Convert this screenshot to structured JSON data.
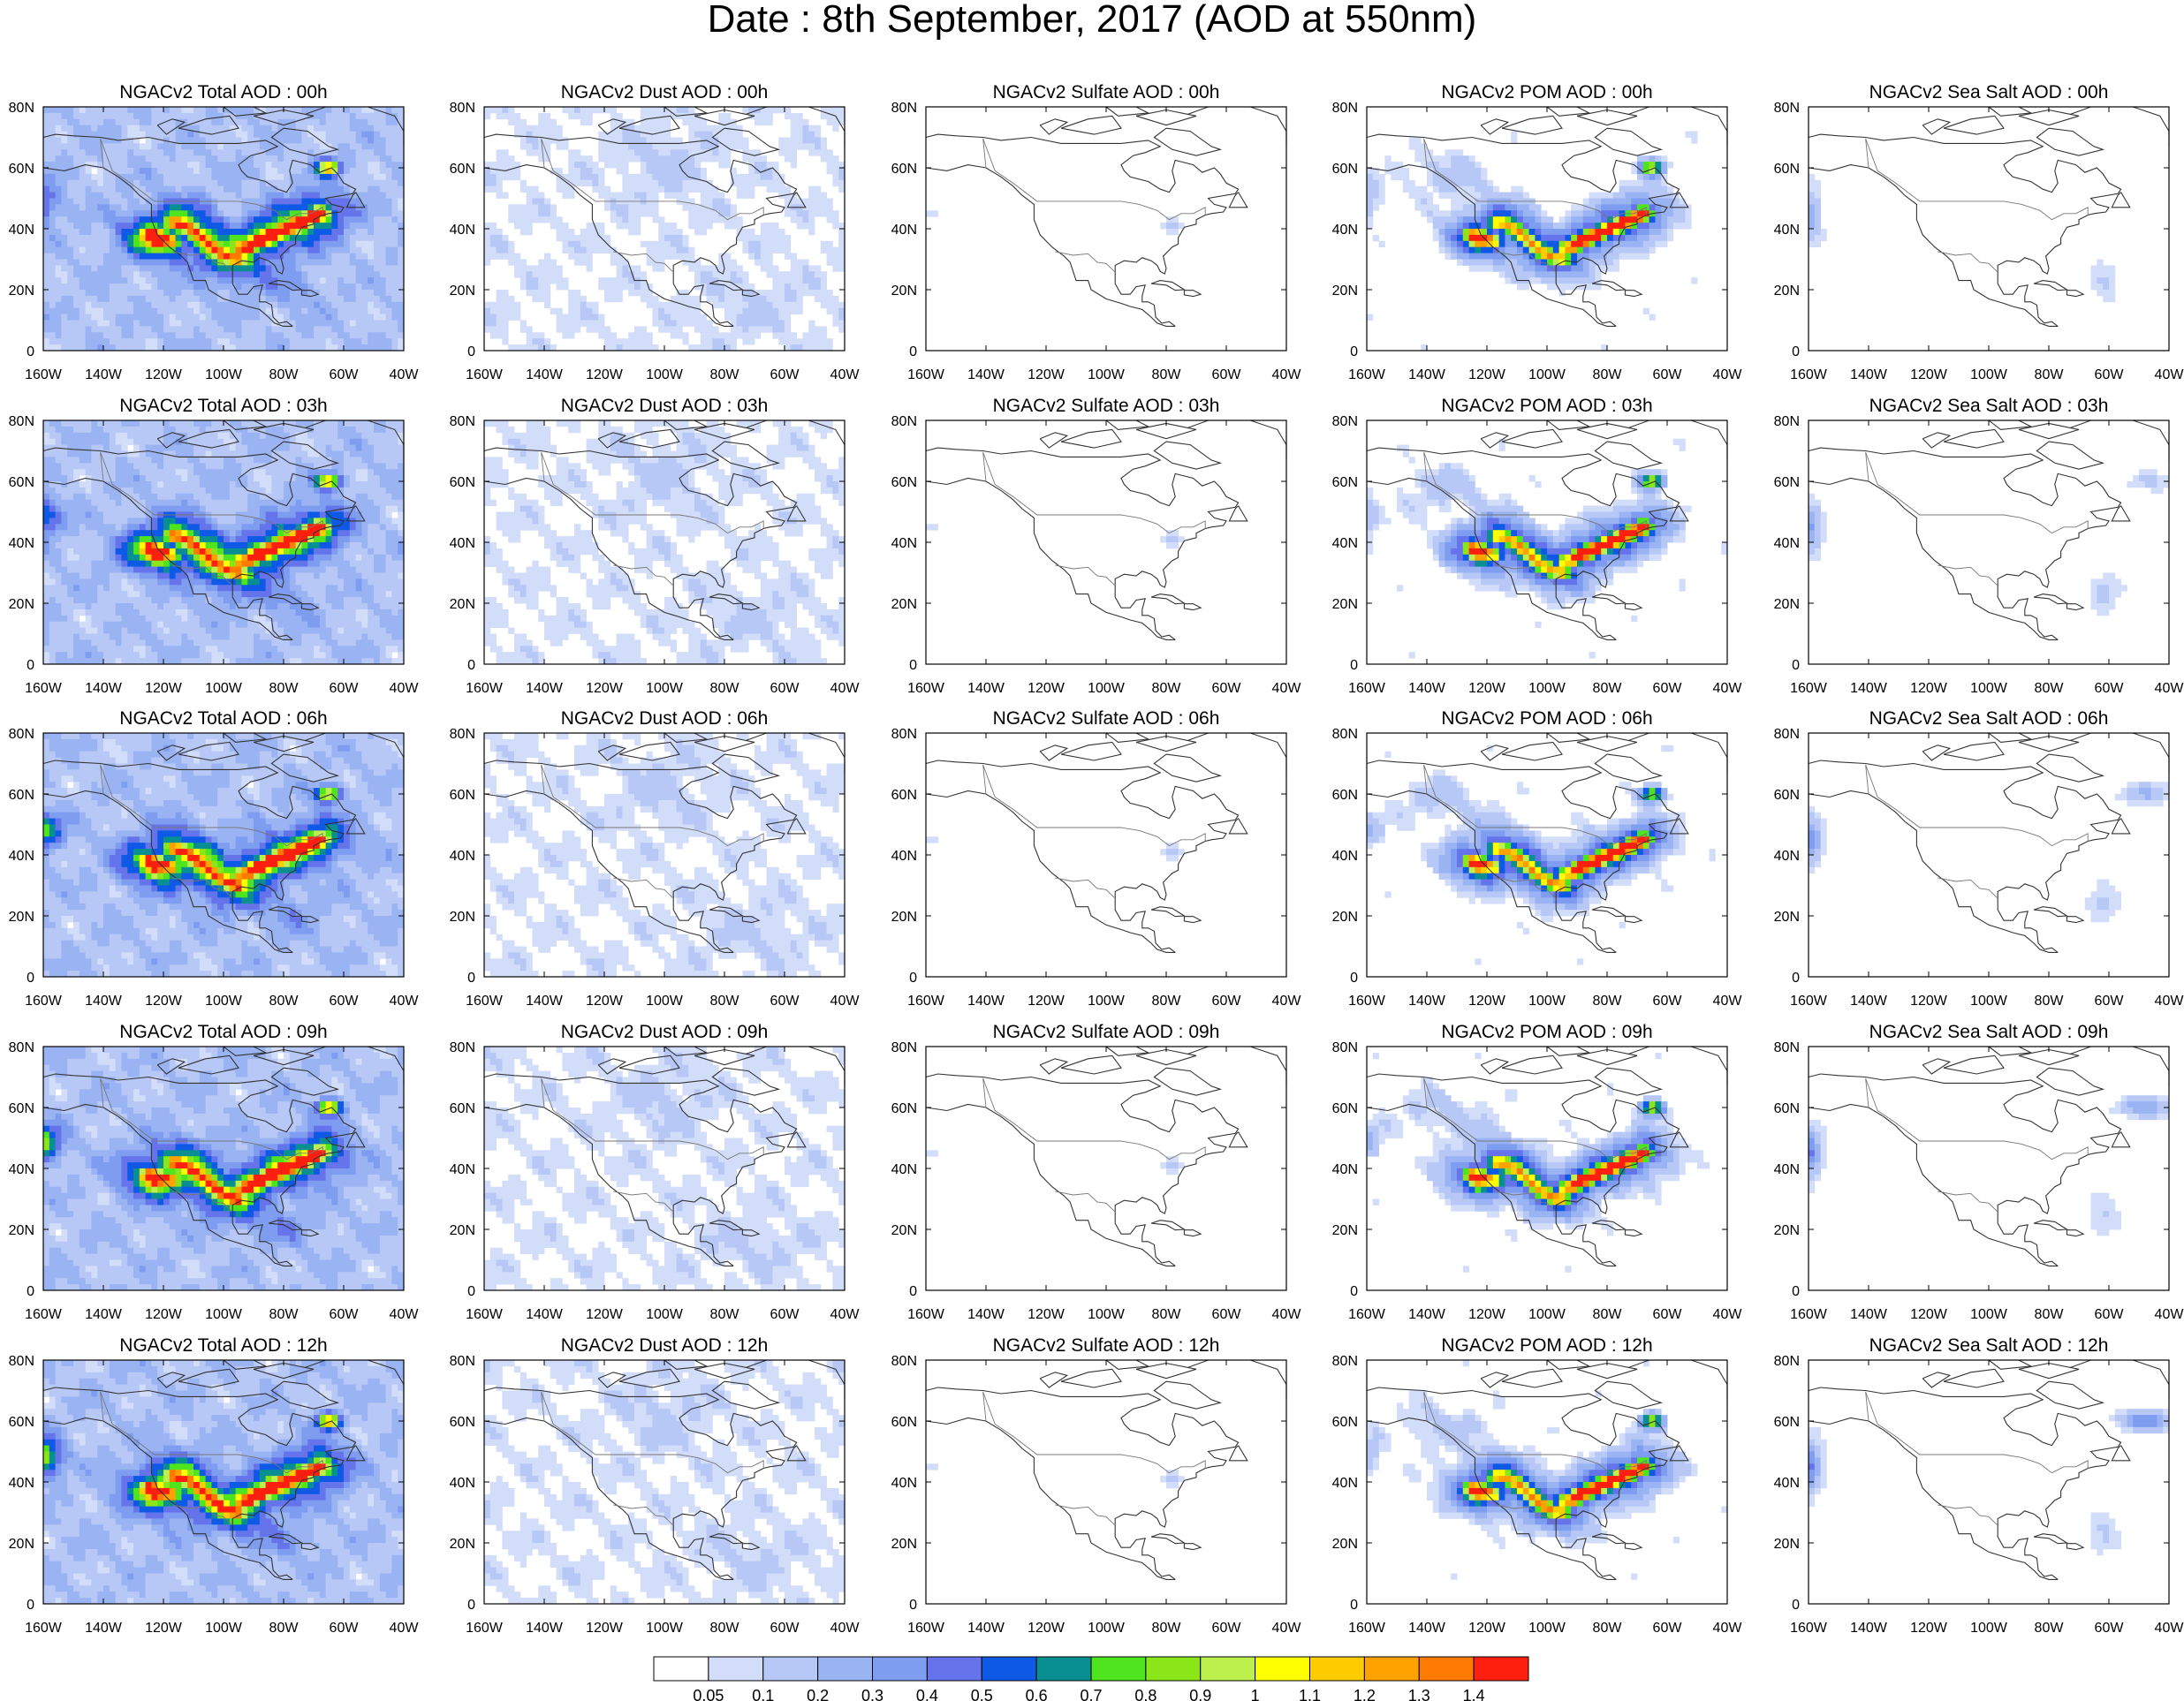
{
  "title": "Date : 8th September, 2017 (AOD at 550nm)",
  "colorbar": {
    "colors": [
      "#ffffff",
      "#d2ddfa",
      "#b7c8f6",
      "#9ab3f3",
      "#7e9cf0",
      "#6574ea",
      "#0e59e6",
      "#098e91",
      "#4ee51f",
      "#8ae619",
      "#bdf04c",
      "#ffff00",
      "#ffcc00",
      "#ffa200",
      "#ff7a00",
      "#fe1f0f"
    ],
    "labels": [
      "0.05",
      "0.1",
      "0.2",
      "0.3",
      "0.4",
      "0.5",
      "0.6",
      "0.7",
      "0.8",
      "0.9",
      "1",
      "1.1",
      "1.2",
      "1.3",
      "1.4"
    ]
  },
  "chart_data": {
    "type": "heatmap",
    "projection": "lat-lon map",
    "lon_range": [
      -160,
      -40
    ],
    "lat_range": [
      0,
      80
    ],
    "x_tick_labels": [
      "160W",
      "140W",
      "120W",
      "100W",
      "80W",
      "60W",
      "40W"
    ],
    "y_tick_labels": [
      "0",
      "20N",
      "40N",
      "60N",
      "80N"
    ],
    "panel_titles": [
      [
        "NGACv2 Total AOD : 00h",
        "NGACv2 Dust AOD : 00h",
        "NGACv2 Sulfate AOD : 00h",
        "NGACv2 POM AOD : 00h",
        "NGACv2 Sea Salt AOD : 00h"
      ],
      [
        "NGACv2 Total AOD : 03h",
        "NGACv2 Dust AOD : 03h",
        "NGACv2 Sulfate AOD : 03h",
        "NGACv2 POM AOD : 03h",
        "NGACv2 Sea Salt AOD : 03h"
      ],
      [
        "NGACv2 Total AOD : 06h",
        "NGACv2 Dust AOD : 06h",
        "NGACv2 Sulfate AOD : 06h",
        "NGACv2 POM AOD : 06h",
        "NGACv2 Sea Salt AOD : 06h"
      ],
      [
        "NGACv2 Total AOD : 09h",
        "NGACv2 Dust AOD : 09h",
        "NGACv2 Sulfate AOD : 09h",
        "NGACv2 POM AOD : 09h",
        "NGACv2 Sea Salt  AOD : 09h"
      ],
      [
        "NGACv2 Total AOD  : 12h",
        "NGACv2 Dust AOD : 12h",
        "NGACv2 Sulfate AOD : 12h",
        "NGACv2 POM  AOD : 12h",
        "NGACv2 Sea Salt  AOD : 12h"
      ]
    ],
    "species": [
      "Total",
      "Dust",
      "Sulfate",
      "POM",
      "Sea Salt"
    ],
    "times": [
      "00h",
      "03h",
      "06h",
      "09h",
      "12h"
    ],
    "approx_max_aod": {
      "Total": [
        1.4,
        1.4,
        1.4,
        1.4,
        1.4
      ],
      "Dust": [
        0.1,
        0.1,
        0.1,
        0.1,
        0.1
      ],
      "Sulfate": [
        0.2,
        0.2,
        0.2,
        0.2,
        0.2
      ],
      "POM": [
        1.4,
        1.4,
        1.4,
        1.4,
        1.4
      ],
      "Sea Salt": [
        0.2,
        0.2,
        0.3,
        0.3,
        0.3
      ]
    },
    "grid": false
  }
}
